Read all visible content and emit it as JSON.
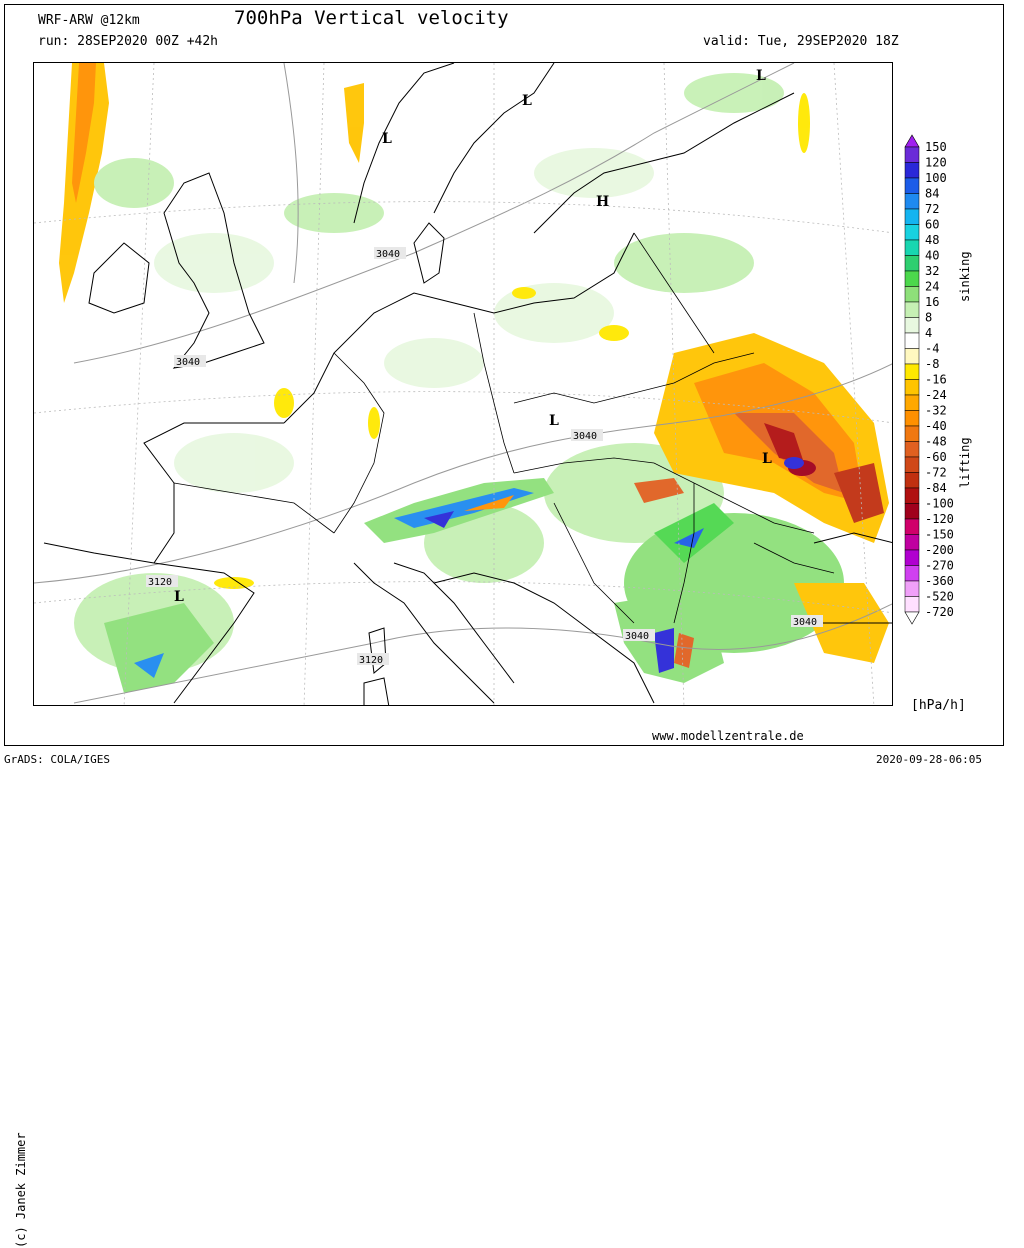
{
  "header": {
    "model": "WRF-ARW @12km",
    "title": "700hPa Vertical velocity",
    "run": "run: 28SEP2020 00Z +42h",
    "valid": "valid: Tue, 29SEP2020 18Z"
  },
  "footer": {
    "url": "www.modellzentrale.de",
    "grads": "GrADS: COLA/IGES",
    "datetime": "2020-09-28-06:05",
    "credit": "(c) Janek Zimmer",
    "units": "[hPa/h]"
  },
  "legend": {
    "sinking_label": "sinking",
    "lifting_label": "lifting",
    "levels": [
      {
        "label": "150",
        "color": "#a020f0"
      },
      {
        "label": "120",
        "color": "#6a2bd8"
      },
      {
        "label": "100",
        "color": "#2a28d8"
      },
      {
        "label": "84",
        "color": "#1c5ce8"
      },
      {
        "label": "72",
        "color": "#1e8af0"
      },
      {
        "label": "60",
        "color": "#14b4f0"
      },
      {
        "label": "48",
        "color": "#18d2e0"
      },
      {
        "label": "40",
        "color": "#18d6b0"
      },
      {
        "label": "32",
        "color": "#2ecf70"
      },
      {
        "label": "24",
        "color": "#4cd84c"
      },
      {
        "label": "16",
        "color": "#8ee07a"
      },
      {
        "label": "8",
        "color": "#c6f0b4"
      },
      {
        "label": "4",
        "color": "#e8f8e0"
      },
      {
        "label": "-4",
        "color": "#ffffff"
      },
      {
        "label": "-8",
        "color": "#fff8c0"
      },
      {
        "label": "-16",
        "color": "#ffe800"
      },
      {
        "label": "-24",
        "color": "#ffc400"
      },
      {
        "label": "-32",
        "color": "#ffa800"
      },
      {
        "label": "-40",
        "color": "#ff9000"
      },
      {
        "label": "-48",
        "color": "#f07810"
      },
      {
        "label": "-60",
        "color": "#e06020"
      },
      {
        "label": "-72",
        "color": "#d04818"
      },
      {
        "label": "-84",
        "color": "#c03010"
      },
      {
        "label": "-100",
        "color": "#b01010"
      },
      {
        "label": "-120",
        "color": "#a0001c"
      },
      {
        "label": "-150",
        "color": "#d0006a"
      },
      {
        "label": "-200",
        "color": "#c000a0"
      },
      {
        "label": "-270",
        "color": "#b000d0"
      },
      {
        "label": "-360",
        "color": "#d040f0"
      },
      {
        "label": "-520",
        "color": "#f0a0f8"
      },
      {
        "label": "-720",
        "color": "#ffe0ff"
      }
    ]
  },
  "map": {
    "pressure_labels": [
      "3040",
      "3040",
      "3040",
      "3040",
      "3040",
      "3120",
      "3120"
    ],
    "centers": [
      "L",
      "L",
      "L",
      "L",
      "H",
      "L",
      "L"
    ]
  }
}
